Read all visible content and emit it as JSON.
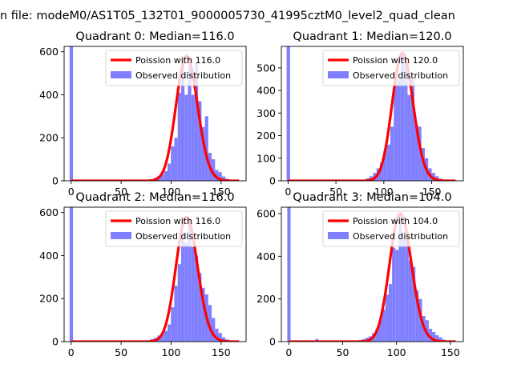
{
  "figure": {
    "suptitle": "n file: modeM0/AS1T05_132T01_9000005730_41995cztM0_level2_quad_clean"
  },
  "chart_data": [
    {
      "type": "bar",
      "title": "Quadrant 0: Median=116.0",
      "xlim": [
        -7,
        175
      ],
      "ylim": [
        0,
        625
      ],
      "xticks": [
        0,
        50,
        100,
        150
      ],
      "yticks": [
        0,
        200,
        400,
        600
      ],
      "legend": [
        "Poission with 116.0",
        "Observed distribution"
      ],
      "legend_position": "top-right",
      "colors": {
        "bars": "#8080ff",
        "line": "#ff0000"
      },
      "bins": {
        "width": 3.4,
        "x": [
          -1.5,
          76,
          79.4,
          82.8,
          86.2,
          89.6,
          93,
          96.4,
          99.8,
          103.2,
          106.6,
          110,
          113.4,
          116.8,
          120.2,
          123.6,
          127,
          130.4,
          133.8,
          137.2,
          140.6,
          144,
          147.4,
          150.8,
          154.2,
          157.6,
          161
        ],
        "counts": [
          625,
          3,
          8,
          15,
          22,
          30,
          45,
          80,
          160,
          200,
          410,
          540,
          400,
          560,
          400,
          550,
          370,
          250,
          300,
          130,
          100,
          50,
          40,
          20,
          10,
          5,
          3
        ]
      },
      "poisson": {
        "mean": 116.0,
        "scale": 580,
        "x_range": [
          0,
          168
        ]
      }
    },
    {
      "type": "bar",
      "title": "Quadrant 1: Median=120.0",
      "xlim": [
        -7,
        183
      ],
      "ylim": [
        0,
        595
      ],
      "xticks": [
        0,
        50,
        100,
        150
      ],
      "yticks": [
        0,
        100,
        200,
        300,
        400,
        500
      ],
      "legend": [
        "Poission with 120.0",
        "Observed distribution"
      ],
      "legend_position": "top-right",
      "colors": {
        "bars": "#8080ff",
        "line": "#ff0000"
      },
      "bins": {
        "width": 3.6,
        "x": [
          -1.5,
          78,
          81.6,
          85.2,
          88.8,
          92.4,
          96,
          99.6,
          103.2,
          106.8,
          110.4,
          114,
          117.6,
          121.2,
          124.8,
          128.4,
          132,
          135.6,
          139.2,
          142.8,
          146.4,
          150,
          153.6,
          157.2,
          160.8
        ],
        "counts": [
          595,
          5,
          12,
          20,
          35,
          55,
          80,
          135,
          160,
          240,
          430,
          450,
          570,
          520,
          380,
          450,
          250,
          240,
          145,
          100,
          55,
          35,
          20,
          10,
          4
        ]
      },
      "poisson": {
        "mean": 120.0,
        "scale": 565,
        "x_range": [
          0,
          175
        ]
      }
    },
    {
      "type": "bar",
      "title": "Quadrant 2: Median=116.0",
      "xlim": [
        -7,
        175
      ],
      "ylim": [
        0,
        625
      ],
      "xticks": [
        0,
        50,
        100,
        150
      ],
      "yticks": [
        0,
        200,
        400,
        600
      ],
      "legend": [
        "Poission with 116.0",
        "Observed distribution"
      ],
      "legend_position": "top-right",
      "colors": {
        "bars": "#8080ff",
        "line": "#ff0000"
      },
      "bins": {
        "width": 3.4,
        "x": [
          -1.5,
          72.6,
          76,
          79.4,
          82.8,
          86.2,
          89.6,
          93,
          96.4,
          99.8,
          103.2,
          106.6,
          110,
          113.4,
          116.8,
          120.2,
          123.6,
          127,
          130.4,
          133.8,
          137.2,
          140.6,
          144,
          147.4,
          150.8,
          154.2,
          157.6,
          161
        ],
        "counts": [
          625,
          3,
          5,
          12,
          18,
          28,
          35,
          50,
          80,
          160,
          260,
          360,
          510,
          460,
          560,
          440,
          400,
          320,
          250,
          220,
          170,
          110,
          60,
          40,
          20,
          10,
          5,
          3
        ]
      },
      "poisson": {
        "mean": 116.0,
        "scale": 580,
        "x_range": [
          0,
          168
        ]
      }
    },
    {
      "type": "bar",
      "title": "Quadrant 3: Median=104.0",
      "xlim": [
        -7,
        162
      ],
      "ylim": [
        0,
        630
      ],
      "xticks": [
        0,
        50,
        100,
        150
      ],
      "yticks": [
        0,
        200,
        400,
        600
      ],
      "legend": [
        "Poission with 104.0",
        "Observed distribution"
      ],
      "legend_position": "top-right",
      "colors": {
        "bars": "#8080ff",
        "line": "#ff0000"
      },
      "bins": {
        "width": 3.1,
        "x": [
          -1.5,
          24.5,
          55.5,
          64.8,
          67.9,
          71,
          74.1,
          77.2,
          80.3,
          83.4,
          86.5,
          89.6,
          92.7,
          95.8,
          98.9,
          102,
          105.1,
          108.2,
          111.3,
          114.4,
          117.5,
          120.6,
          123.7,
          126.8,
          129.9,
          133,
          136.1,
          139.2,
          142.3,
          145.4
        ],
        "counts": [
          630,
          12,
          5,
          8,
          12,
          18,
          25,
          40,
          60,
          100,
          150,
          220,
          270,
          440,
          430,
          600,
          480,
          520,
          380,
          350,
          240,
          200,
          120,
          100,
          60,
          45,
          30,
          20,
          10,
          5
        ]
      },
      "poisson": {
        "mean": 104.0,
        "scale": 600,
        "x_range": [
          0,
          155
        ]
      }
    }
  ]
}
